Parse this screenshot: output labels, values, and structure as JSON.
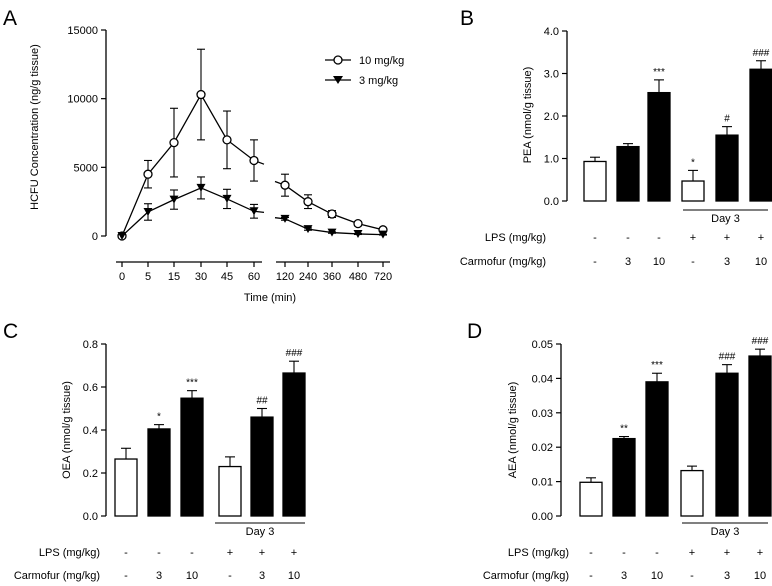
{
  "chart_data": [
    {
      "panel": "A",
      "type": "line",
      "ylabel": "HCFU Concentration (ng/g tissue)",
      "xlabel": "Time (min)",
      "ylim": [
        0,
        15000
      ],
      "yticks": [
        0,
        5000,
        10000,
        15000
      ],
      "xticks": [
        "0",
        "5",
        "15",
        "30",
        "45",
        "60",
        "120",
        "240",
        "360",
        "480",
        "720"
      ],
      "axis_break": "between 60 and 120",
      "series": [
        {
          "name": "10 mg/kg",
          "marker": "open-circle",
          "x": [
            "0",
            "5",
            "15",
            "30",
            "45",
            "60",
            "120",
            "240",
            "360",
            "480",
            "720"
          ],
          "values": [
            0,
            4500,
            6800,
            10300,
            7000,
            5500,
            3700,
            2500,
            1600,
            900,
            450
          ],
          "errors": [
            0,
            1000,
            2500,
            3300,
            2100,
            1500,
            800,
            500,
            250,
            150,
            100
          ]
        },
        {
          "name": "3 mg/kg",
          "marker": "filled-triangle-down",
          "x": [
            "0",
            "5",
            "15",
            "30",
            "45",
            "60",
            "120",
            "240",
            "360",
            "480",
            "720"
          ],
          "values": [
            0,
            1750,
            2650,
            3500,
            2700,
            1800,
            1250,
            500,
            250,
            150,
            100
          ],
          "errors": [
            0,
            600,
            700,
            800,
            700,
            500,
            100,
            80,
            50,
            40,
            30
          ]
        }
      ]
    },
    {
      "panel": "B",
      "type": "bar",
      "ylabel": "PEA (nmol/g tissue)",
      "ylim": [
        0,
        4.0
      ],
      "yticks": [
        "0.0",
        "1.0",
        "2.0",
        "3.0",
        "4.0"
      ],
      "values": [
        0.93,
        1.28,
        2.55,
        0.47,
        1.55,
        3.1
      ],
      "errors": [
        0.1,
        0.07,
        0.3,
        0.25,
        0.2,
        0.2
      ],
      "fills": [
        "open",
        "filled",
        "filled",
        "open",
        "filled",
        "filled"
      ],
      "annotations": [
        "",
        "",
        "***",
        "*",
        "#",
        "###"
      ]
    },
    {
      "panel": "C",
      "type": "bar",
      "ylabel": "OEA (nmol/g tissue)",
      "ylim": [
        0,
        0.8
      ],
      "yticks": [
        "0.0",
        "0.2",
        "0.4",
        "0.6",
        "0.8"
      ],
      "values": [
        0.265,
        0.405,
        0.548,
        0.23,
        0.46,
        0.665
      ],
      "errors": [
        0.05,
        0.02,
        0.035,
        0.045,
        0.04,
        0.055
      ],
      "fills": [
        "open",
        "filled",
        "filled",
        "open",
        "filled",
        "filled"
      ],
      "annotations": [
        "",
        "*",
        "***",
        "",
        "##",
        "###"
      ]
    },
    {
      "panel": "D",
      "type": "bar",
      "ylabel": "AEA (nmol/g tissue)",
      "ylim": [
        0,
        0.05
      ],
      "yticks": [
        "0.00",
        "0.01",
        "0.02",
        "0.03",
        "0.04",
        "0.05"
      ],
      "values": [
        0.0098,
        0.0225,
        0.039,
        0.0132,
        0.0415,
        0.0465
      ],
      "errors": [
        0.0013,
        0.0006,
        0.0025,
        0.0013,
        0.0025,
        0.002
      ],
      "fills": [
        "open",
        "filled",
        "filled",
        "open",
        "filled",
        "filled"
      ],
      "annotations": [
        "",
        "**",
        "***",
        "",
        "###",
        "###"
      ]
    }
  ],
  "panel_letters": [
    "A",
    "B",
    "C",
    "D"
  ],
  "legend": {
    "items": [
      "10 mg/kg",
      "3 mg/kg"
    ]
  },
  "treatment": {
    "group_label": "Day 3",
    "lps_label": "LPS (mg/kg)",
    "carmofur_label": "Carmofur (mg/kg)",
    "lps_values": [
      "-",
      "-",
      "-",
      "+",
      "+",
      "+"
    ],
    "carmofur_values": [
      "-",
      "3",
      "10",
      "-",
      "3",
      "10"
    ]
  }
}
